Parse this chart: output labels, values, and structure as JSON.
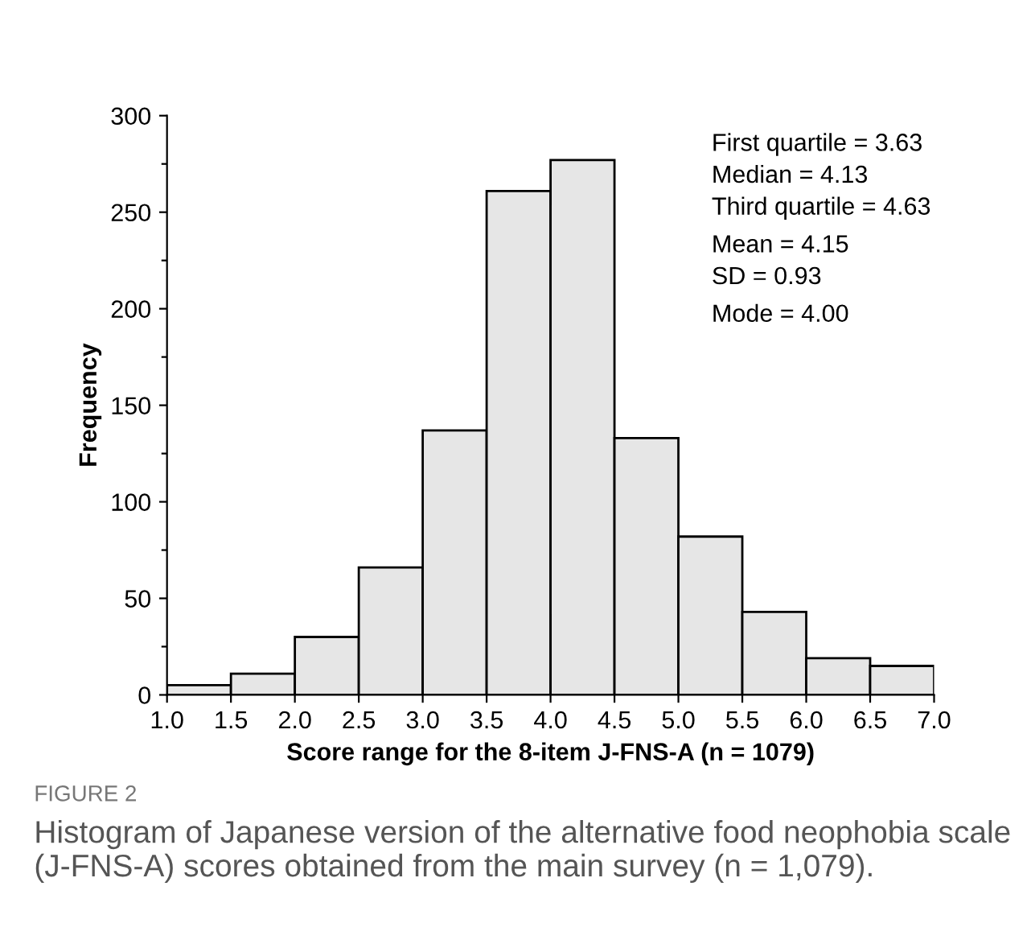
{
  "chart_data": {
    "type": "histogram",
    "xlabel": "Score range for the 8-item J-FNS-A (n = 1079)",
    "ylabel": "Frequency",
    "bins": [
      1.0,
      1.5,
      2.0,
      2.5,
      3.0,
      3.5,
      4.0,
      4.5,
      5.0,
      5.5,
      6.0,
      6.5,
      7.0
    ],
    "values": [
      5,
      11,
      30,
      66,
      137,
      261,
      277,
      133,
      82,
      43,
      19,
      15
    ],
    "color": "#e6e6e6",
    "xlim": [
      1.0,
      7.0
    ],
    "xticks": [
      {
        "value": 1.0,
        "label": "1.0"
      },
      {
        "value": 1.5,
        "label": "1.5"
      },
      {
        "value": 2.0,
        "label": "2.0"
      },
      {
        "value": 2.5,
        "label": "2.5"
      },
      {
        "value": 3.0,
        "label": "3.0"
      },
      {
        "value": 3.5,
        "label": "3.5"
      },
      {
        "value": 4.0,
        "label": "4.0"
      },
      {
        "value": 4.5,
        "label": "4.5"
      },
      {
        "value": 5.0,
        "label": "5.0"
      },
      {
        "value": 5.5,
        "label": "5.5"
      },
      {
        "value": 6.0,
        "label": "6.0"
      },
      {
        "value": 6.5,
        "label": "6.5"
      },
      {
        "value": 7.0,
        "label": "7.0"
      }
    ],
    "ylim": [
      0,
      300
    ],
    "yticks": [
      0,
      {
        "value": 25,
        "label": null
      },
      50,
      {
        "value": 75,
        "label": null
      },
      100,
      {
        "value": 125,
        "label": null
      },
      150,
      {
        "value": 175,
        "label": null
      },
      200,
      {
        "value": 225,
        "label": null
      },
      250,
      {
        "value": 275,
        "label": null
      },
      300
    ],
    "grid": false,
    "legend": false,
    "annotations": [
      "First quartile = 3.63",
      "Median = 4.13",
      "Third quartile = 4.63",
      "Mean = 4.15",
      "SD = 0.93",
      "Mode = 4.00",
      "FIGURE 2",
      "Histogram of Japanese version of the alternative food neophobia scale (J-FNS-A) scores obtained from the main survey (n = 1,079)."
    ]
  }
}
